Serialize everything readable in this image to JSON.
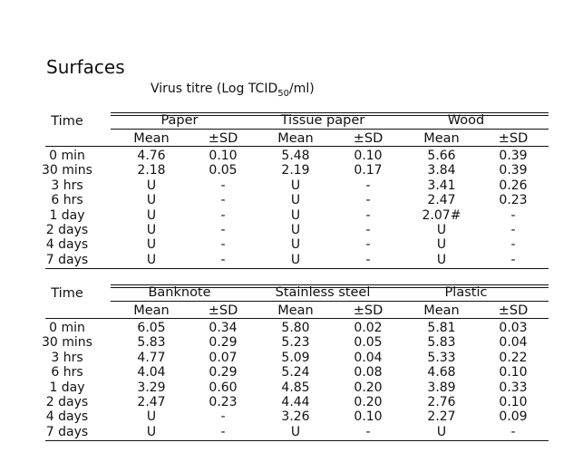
{
  "title": "Surfaces",
  "subtitle": {
    "prefix": "Virus titre (Log TCID",
    "sub": "50",
    "suffix": "/ml)"
  },
  "tables": [
    {
      "time_label": "Time",
      "groups": [
        "Paper",
        "Tissue paper",
        "Wood"
      ],
      "subheaders": [
        "Mean",
        "±SD",
        "Mean",
        "±SD",
        "Mean",
        "±SD"
      ],
      "rows": [
        {
          "time": "0 min",
          "values": [
            "4.76",
            "0.10",
            "5.48",
            "0.10",
            "5.66",
            "0.39"
          ]
        },
        {
          "time": "30 mins",
          "values": [
            "2.18",
            "0.05",
            "2.19",
            "0.17",
            "3.84",
            "0.39"
          ]
        },
        {
          "time": "3 hrs",
          "values": [
            "U",
            "-",
            "U",
            "-",
            "3.41",
            "0.26"
          ]
        },
        {
          "time": "6 hrs",
          "values": [
            "U",
            "-",
            "U",
            "-",
            "2.47",
            "0.23"
          ]
        },
        {
          "time": "1 day",
          "values": [
            "U",
            "-",
            "U",
            "-",
            "2.07#",
            "-"
          ]
        },
        {
          "time": "2 days",
          "values": [
            "U",
            "-",
            "U",
            "-",
            "U",
            "-"
          ]
        },
        {
          "time": "4 days",
          "values": [
            "U",
            "-",
            "U",
            "-",
            "U",
            "-"
          ]
        },
        {
          "time": "7 days",
          "values": [
            "U",
            "-",
            "U",
            "-",
            "U",
            "-"
          ]
        }
      ]
    },
    {
      "time_label": "Time",
      "groups": [
        "Banknote",
        "Stainless steel",
        "Plastic"
      ],
      "subheaders": [
        "Mean",
        "±SD",
        "Mean",
        "±SD",
        "Mean",
        "±SD"
      ],
      "rows": [
        {
          "time": "0 min",
          "values": [
            "6.05",
            "0.34",
            "5.80",
            "0.02",
            "5.81",
            "0.03"
          ]
        },
        {
          "time": "30 mins",
          "values": [
            "5.83",
            "0.29",
            "5.23",
            "0.05",
            "5.83",
            "0.04"
          ]
        },
        {
          "time": "3 hrs",
          "values": [
            "4.77",
            "0.07",
            "5.09",
            "0.04",
            "5.33",
            "0.22"
          ]
        },
        {
          "time": "6 hrs",
          "values": [
            "4.04",
            "0.29",
            "5.24",
            "0.08",
            "4.68",
            "0.10"
          ]
        },
        {
          "time": "1 day",
          "values": [
            "3.29",
            "0.60",
            "4.85",
            "0.20",
            "3.89",
            "0.33"
          ]
        },
        {
          "time": "2 days",
          "values": [
            "2.47",
            "0.23",
            "4.44",
            "0.20",
            "2.76",
            "0.10"
          ]
        },
        {
          "time": "4 days",
          "values": [
            "U",
            "-",
            "3.26",
            "0.10",
            "2.27",
            "0.09"
          ]
        },
        {
          "time": "7 days",
          "values": [
            "U",
            "-",
            "U",
            "-",
            "U",
            "-"
          ]
        }
      ]
    }
  ]
}
